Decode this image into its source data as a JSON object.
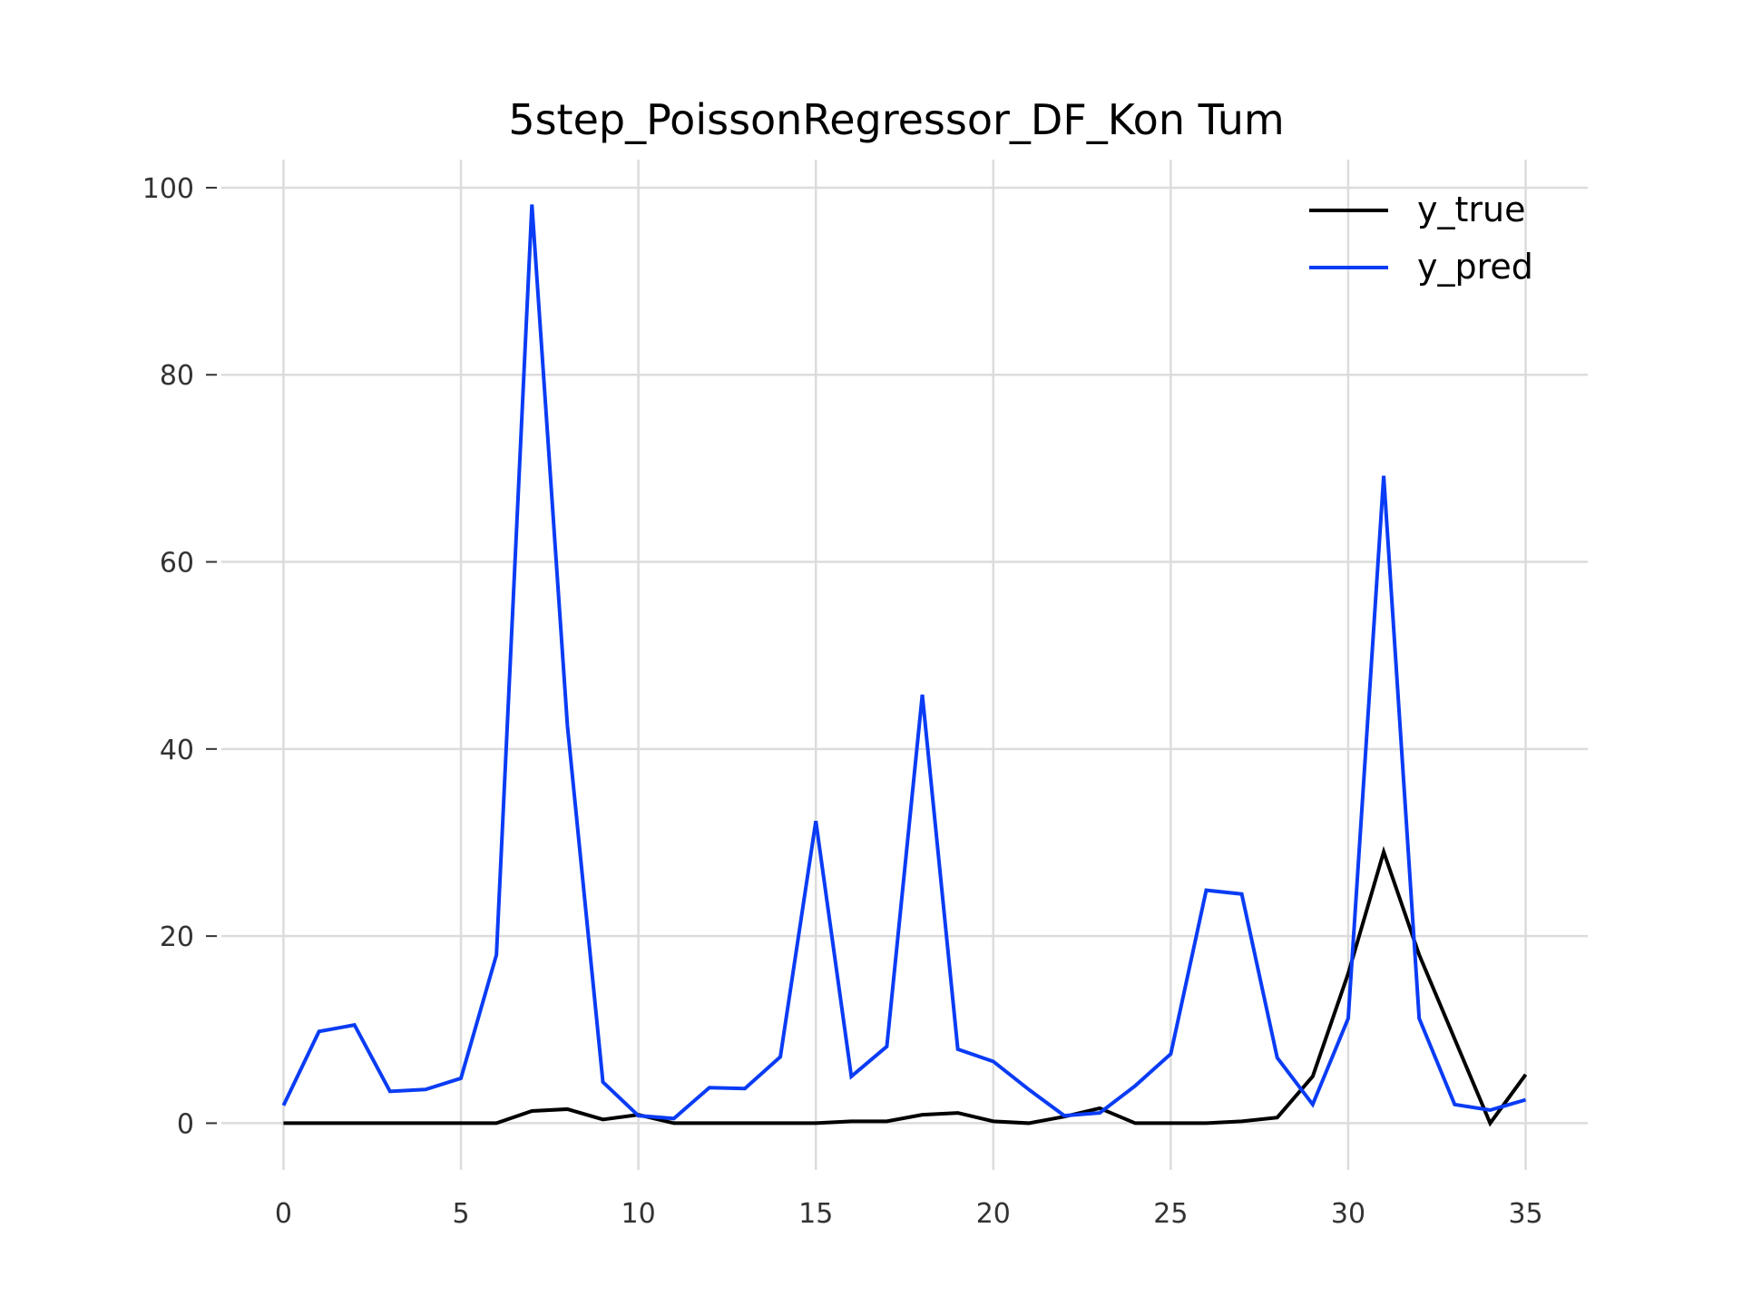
{
  "chart_data": {
    "type": "line",
    "title": "5step_PoissonRegressor_DF_Kon Tum",
    "xlabel": "",
    "ylabel": "",
    "xlim": [
      -1.75,
      36.75
    ],
    "ylim": [
      -5,
      103
    ],
    "xticks": [
      0,
      5,
      10,
      15,
      20,
      25,
      30,
      35
    ],
    "yticks": [
      0,
      20,
      40,
      60,
      80,
      100
    ],
    "grid": true,
    "legend_position": "top-right",
    "x": [
      0,
      1,
      2,
      3,
      4,
      5,
      6,
      7,
      8,
      9,
      10,
      11,
      12,
      13,
      14,
      15,
      16,
      17,
      18,
      19,
      20,
      21,
      22,
      23,
      24,
      25,
      26,
      27,
      28,
      29,
      30,
      31,
      32,
      33,
      34,
      35
    ],
    "series": [
      {
        "name": "y_true",
        "color": "#000000",
        "values": [
          0,
          0,
          0,
          0,
          0,
          0,
          0,
          1.3,
          1.5,
          0.4,
          0.9,
          0,
          0,
          0,
          0,
          0,
          0.2,
          0.2,
          0.9,
          1.1,
          0.2,
          0,
          0.7,
          1.6,
          0,
          0,
          0,
          0.2,
          0.6,
          5,
          16,
          29,
          18,
          9,
          0,
          5.2
        ]
      },
      {
        "name": "y_pred",
        "color": "#0a3cf5",
        "values": [
          1.9,
          9.8,
          10.5,
          3.4,
          3.6,
          4.8,
          18,
          98.2,
          42.5,
          4.4,
          0.8,
          0.5,
          3.8,
          3.7,
          7.1,
          32.3,
          5,
          8.2,
          45.8,
          7.9,
          6.6,
          3.6,
          0.8,
          1.1,
          4,
          7.4,
          24.9,
          24.5,
          7,
          2,
          11.2,
          69.2,
          11.2,
          2,
          1.4,
          2.5
        ]
      }
    ]
  }
}
